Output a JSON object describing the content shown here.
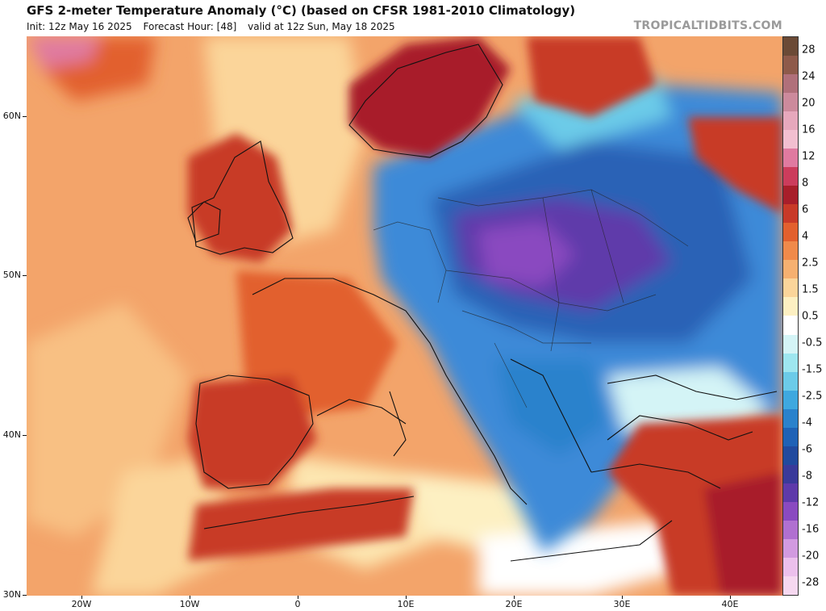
{
  "header": {
    "title": "GFS 2-meter Temperature Anomaly (°C) (based on CFSR 1981-2010 Climatology)",
    "init": "Init: 12z May 16 2025",
    "forecast_hour": "Forecast Hour: [48]",
    "valid": "valid at 12z Sun, May 18 2025",
    "brand": "TROPICALTIDBITS.COM"
  },
  "axes": {
    "lat_labels": [
      "60N",
      "50N",
      "40N",
      "30N"
    ],
    "lon_labels": [
      "20W",
      "10W",
      "0",
      "10E",
      "20E",
      "30E",
      "40E"
    ]
  },
  "colorbar": {
    "labels": [
      "28",
      "24",
      "20",
      "16",
      "12",
      "8",
      "6",
      "4",
      "2.5",
      "1.5",
      "0.5",
      "-0.5",
      "-1.5",
      "-2.5",
      "-4",
      "-6",
      "-8",
      "-12",
      "-16",
      "-20",
      "-28"
    ],
    "colors": [
      "#6b4a36",
      "#8e5a4a",
      "#b0707a",
      "#cc8a9c",
      "#e6a8bc",
      "#f2bfd0",
      "#e07aa0",
      "#cc3c5c",
      "#a81e2a",
      "#c83a28",
      "#e2602e",
      "#f08a4a",
      "#f6b070",
      "#fbd59a",
      "#fdf0c2",
      "#ffffff",
      "#d4f4f6",
      "#9ee6ef",
      "#6ccbe8",
      "#3ea8df",
      "#2a82cc",
      "#1f62b6",
      "#214a9e",
      "#3a3a9a",
      "#5e3aaa",
      "#8a4ac0",
      "#b070d0",
      "#d29ae0",
      "#ecc0ec",
      "#f6d8f0"
    ]
  }
}
